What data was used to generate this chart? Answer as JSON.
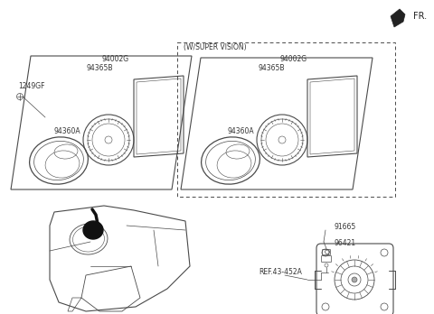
{
  "bg_color": "#ffffff",
  "line_color": "#4a4a4a",
  "text_color": "#333333",
  "fr_label": "FR.",
  "labels": {
    "94002G_left": "94002G",
    "94365B_left": "94365B",
    "94360A_left": "94360A",
    "1249GF": "1249GF",
    "w_super_vision": "(W/SUPER VISION)",
    "94002G_right": "94002G",
    "94365B_right": "94365B",
    "94360A_right": "94360A",
    "91665": "91665",
    "96421": "96421",
    "ref_label": "REF.43-452A"
  },
  "font_size": 5.5,
  "font_size_fr": 7
}
